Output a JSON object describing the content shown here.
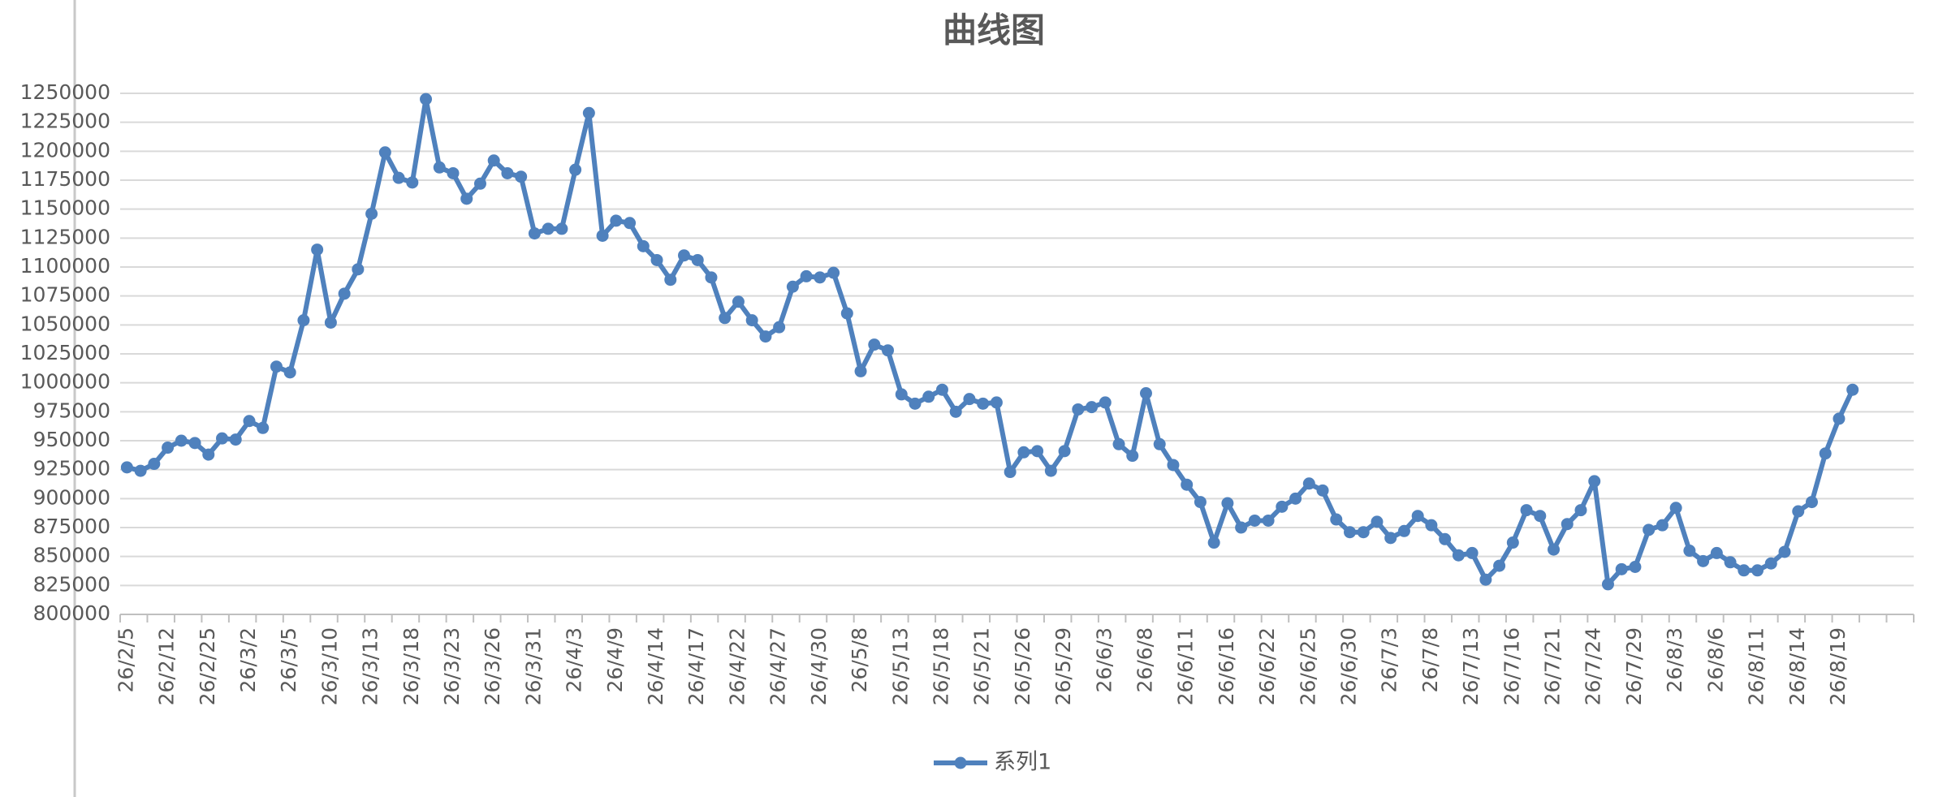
{
  "chart_data": {
    "type": "line",
    "title": "曲线图",
    "categories": [
      "26/2/5",
      null,
      null,
      "26/2/12",
      null,
      null,
      "26/2/25",
      null,
      null,
      "26/3/2",
      null,
      null,
      "26/3/5",
      null,
      null,
      "26/3/10",
      null,
      null,
      "26/3/13",
      null,
      null,
      "26/3/18",
      null,
      null,
      "26/3/23",
      null,
      null,
      "26/3/26",
      null,
      null,
      "26/3/31",
      null,
      null,
      "26/4/3",
      null,
      null,
      "26/4/9",
      null,
      null,
      "26/4/14",
      null,
      null,
      "26/4/17",
      null,
      null,
      "26/4/22",
      null,
      null,
      "26/4/27",
      null,
      null,
      "26/4/30",
      null,
      null,
      "26/5/8",
      null,
      null,
      "26/5/13",
      null,
      null,
      "26/5/18",
      null,
      null,
      "26/5/21",
      null,
      null,
      "26/5/26",
      null,
      null,
      "26/5/29",
      null,
      null,
      "26/6/3",
      null,
      null,
      "26/6/8",
      null,
      null,
      "26/6/11",
      null,
      null,
      "26/6/16",
      null,
      null,
      "26/6/22",
      null,
      null,
      "26/6/25",
      null,
      null,
      "26/6/30",
      null,
      null,
      "26/7/3",
      null,
      null,
      "26/7/8",
      null,
      null,
      "26/7/13",
      null,
      null,
      "26/7/16",
      null,
      null,
      "26/7/21",
      null,
      null,
      "26/7/24",
      null,
      null,
      "26/7/29",
      null,
      null,
      "26/8/3",
      null,
      null,
      "26/8/6",
      null,
      null,
      "26/8/11",
      null,
      null,
      "26/8/14",
      null,
      null,
      "26/8/19",
      null,
      null,
      null,
      null,
      null
    ],
    "series": [
      {
        "name": "系列1",
        "color": "#4f81bd",
        "values": [
          927000,
          924000,
          930000,
          944000,
          950000,
          948000,
          938000,
          952000,
          951000,
          967000,
          961000,
          1014000,
          1009000,
          1054000,
          1115000,
          1052000,
          1077000,
          1098000,
          1146000,
          1199000,
          1177000,
          1173000,
          1245000,
          1186000,
          1181000,
          1159000,
          1172000,
          1192000,
          1181000,
          1178000,
          1129000,
          1133000,
          1133000,
          1184000,
          1233000,
          1127000,
          1140000,
          1138000,
          1118000,
          1106000,
          1089000,
          1110000,
          1106000,
          1091000,
          1056000,
          1070000,
          1054000,
          1040000,
          1048000,
          1083000,
          1092000,
          1091000,
          1095000,
          1060000,
          1010000,
          1033000,
          1028000,
          990000,
          982000,
          988000,
          994000,
          975000,
          986000,
          982000,
          983000,
          923000,
          940000,
          941000,
          924000,
          941000,
          977000,
          979000,
          983000,
          947000,
          937000,
          991000,
          947000,
          929000,
          912000,
          897000,
          862000,
          896000,
          875000,
          881000,
          881000,
          893000,
          900000,
          913000,
          907000,
          882000,
          871000,
          871000,
          880000,
          866000,
          872000,
          885000,
          877000,
          865000,
          851000,
          853000,
          830000,
          842000,
          862000,
          890000,
          885000,
          856000,
          878000,
          890000,
          915000,
          826000,
          839000,
          841000,
          873000,
          877000,
          892000,
          855000,
          846000,
          853000,
          845000,
          838000,
          838000,
          844000,
          854000,
          889000,
          897000,
          939000,
          969000,
          994000,
          null,
          null,
          null,
          null
        ]
      }
    ],
    "ylim": [
      800000,
      1250000
    ],
    "yticks": [
      800000,
      825000,
      850000,
      875000,
      900000,
      925000,
      950000,
      975000,
      1000000,
      1025000,
      1050000,
      1075000,
      1100000,
      1125000,
      1150000,
      1175000,
      1200000,
      1225000,
      1250000
    ],
    "grid": true,
    "legend": "bottom"
  }
}
